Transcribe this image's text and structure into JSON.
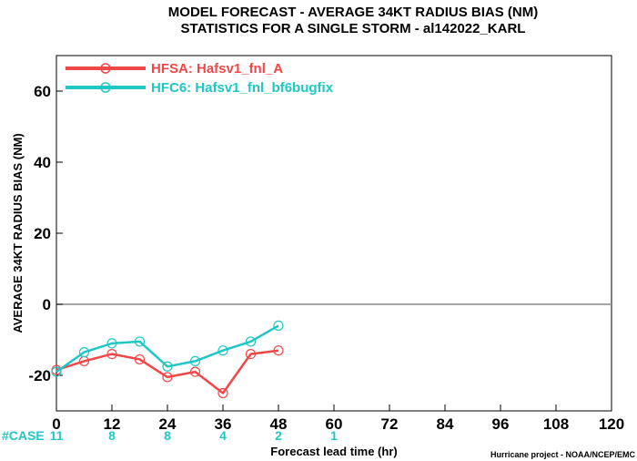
{
  "chart_data": {
    "type": "line",
    "title_line1": "MODEL FORECAST - AVERAGE 34KT RADIUS BIAS (NM)",
    "title_line2": "STATISTICS FOR A SINGLE STORM - al142022_KARL",
    "xlabel": "Forecast lead time (hr)",
    "ylabel": "AVERAGE 34KT RADIUS BIAS (NM)",
    "xlim": [
      0,
      120
    ],
    "ylim": [
      -30,
      70
    ],
    "xticks": [
      0,
      12,
      24,
      36,
      48,
      60,
      72,
      84,
      96,
      108,
      120
    ],
    "yticks": [
      -20,
      0,
      20,
      40,
      60
    ],
    "zero_line": true,
    "legend_position": "top-left",
    "series": [
      {
        "name": "HFSA: Hafsv1_fnl_A",
        "color": "#f04848",
        "x": [
          0,
          6,
          12,
          18,
          24,
          30,
          36,
          42,
          48
        ],
        "y": [
          -18.5,
          -16,
          -14,
          -15.5,
          -20.5,
          -19,
          -25,
          -14,
          -13
        ]
      },
      {
        "name": "HFC6: Hafsv1_fnl_bf6bugfix",
        "color": "#1fc7c7",
        "x": [
          0,
          6,
          12,
          18,
          24,
          30,
          36,
          42,
          48
        ],
        "y": [
          -19,
          -13.5,
          -11,
          -10.5,
          -17.5,
          -16,
          -13,
          -10.5,
          -6
        ]
      }
    ],
    "case_label": "#CASE",
    "cases": [
      {
        "x": 0,
        "count": "11"
      },
      {
        "x": 12,
        "count": "8"
      },
      {
        "x": 24,
        "count": "8"
      },
      {
        "x": 36,
        "count": "4"
      },
      {
        "x": 48,
        "count": "2"
      },
      {
        "x": 60,
        "count": "1"
      }
    ],
    "case_color": "#1fc7c7",
    "credit": "Hurricane project - NOAA/NCEP/EMC"
  }
}
